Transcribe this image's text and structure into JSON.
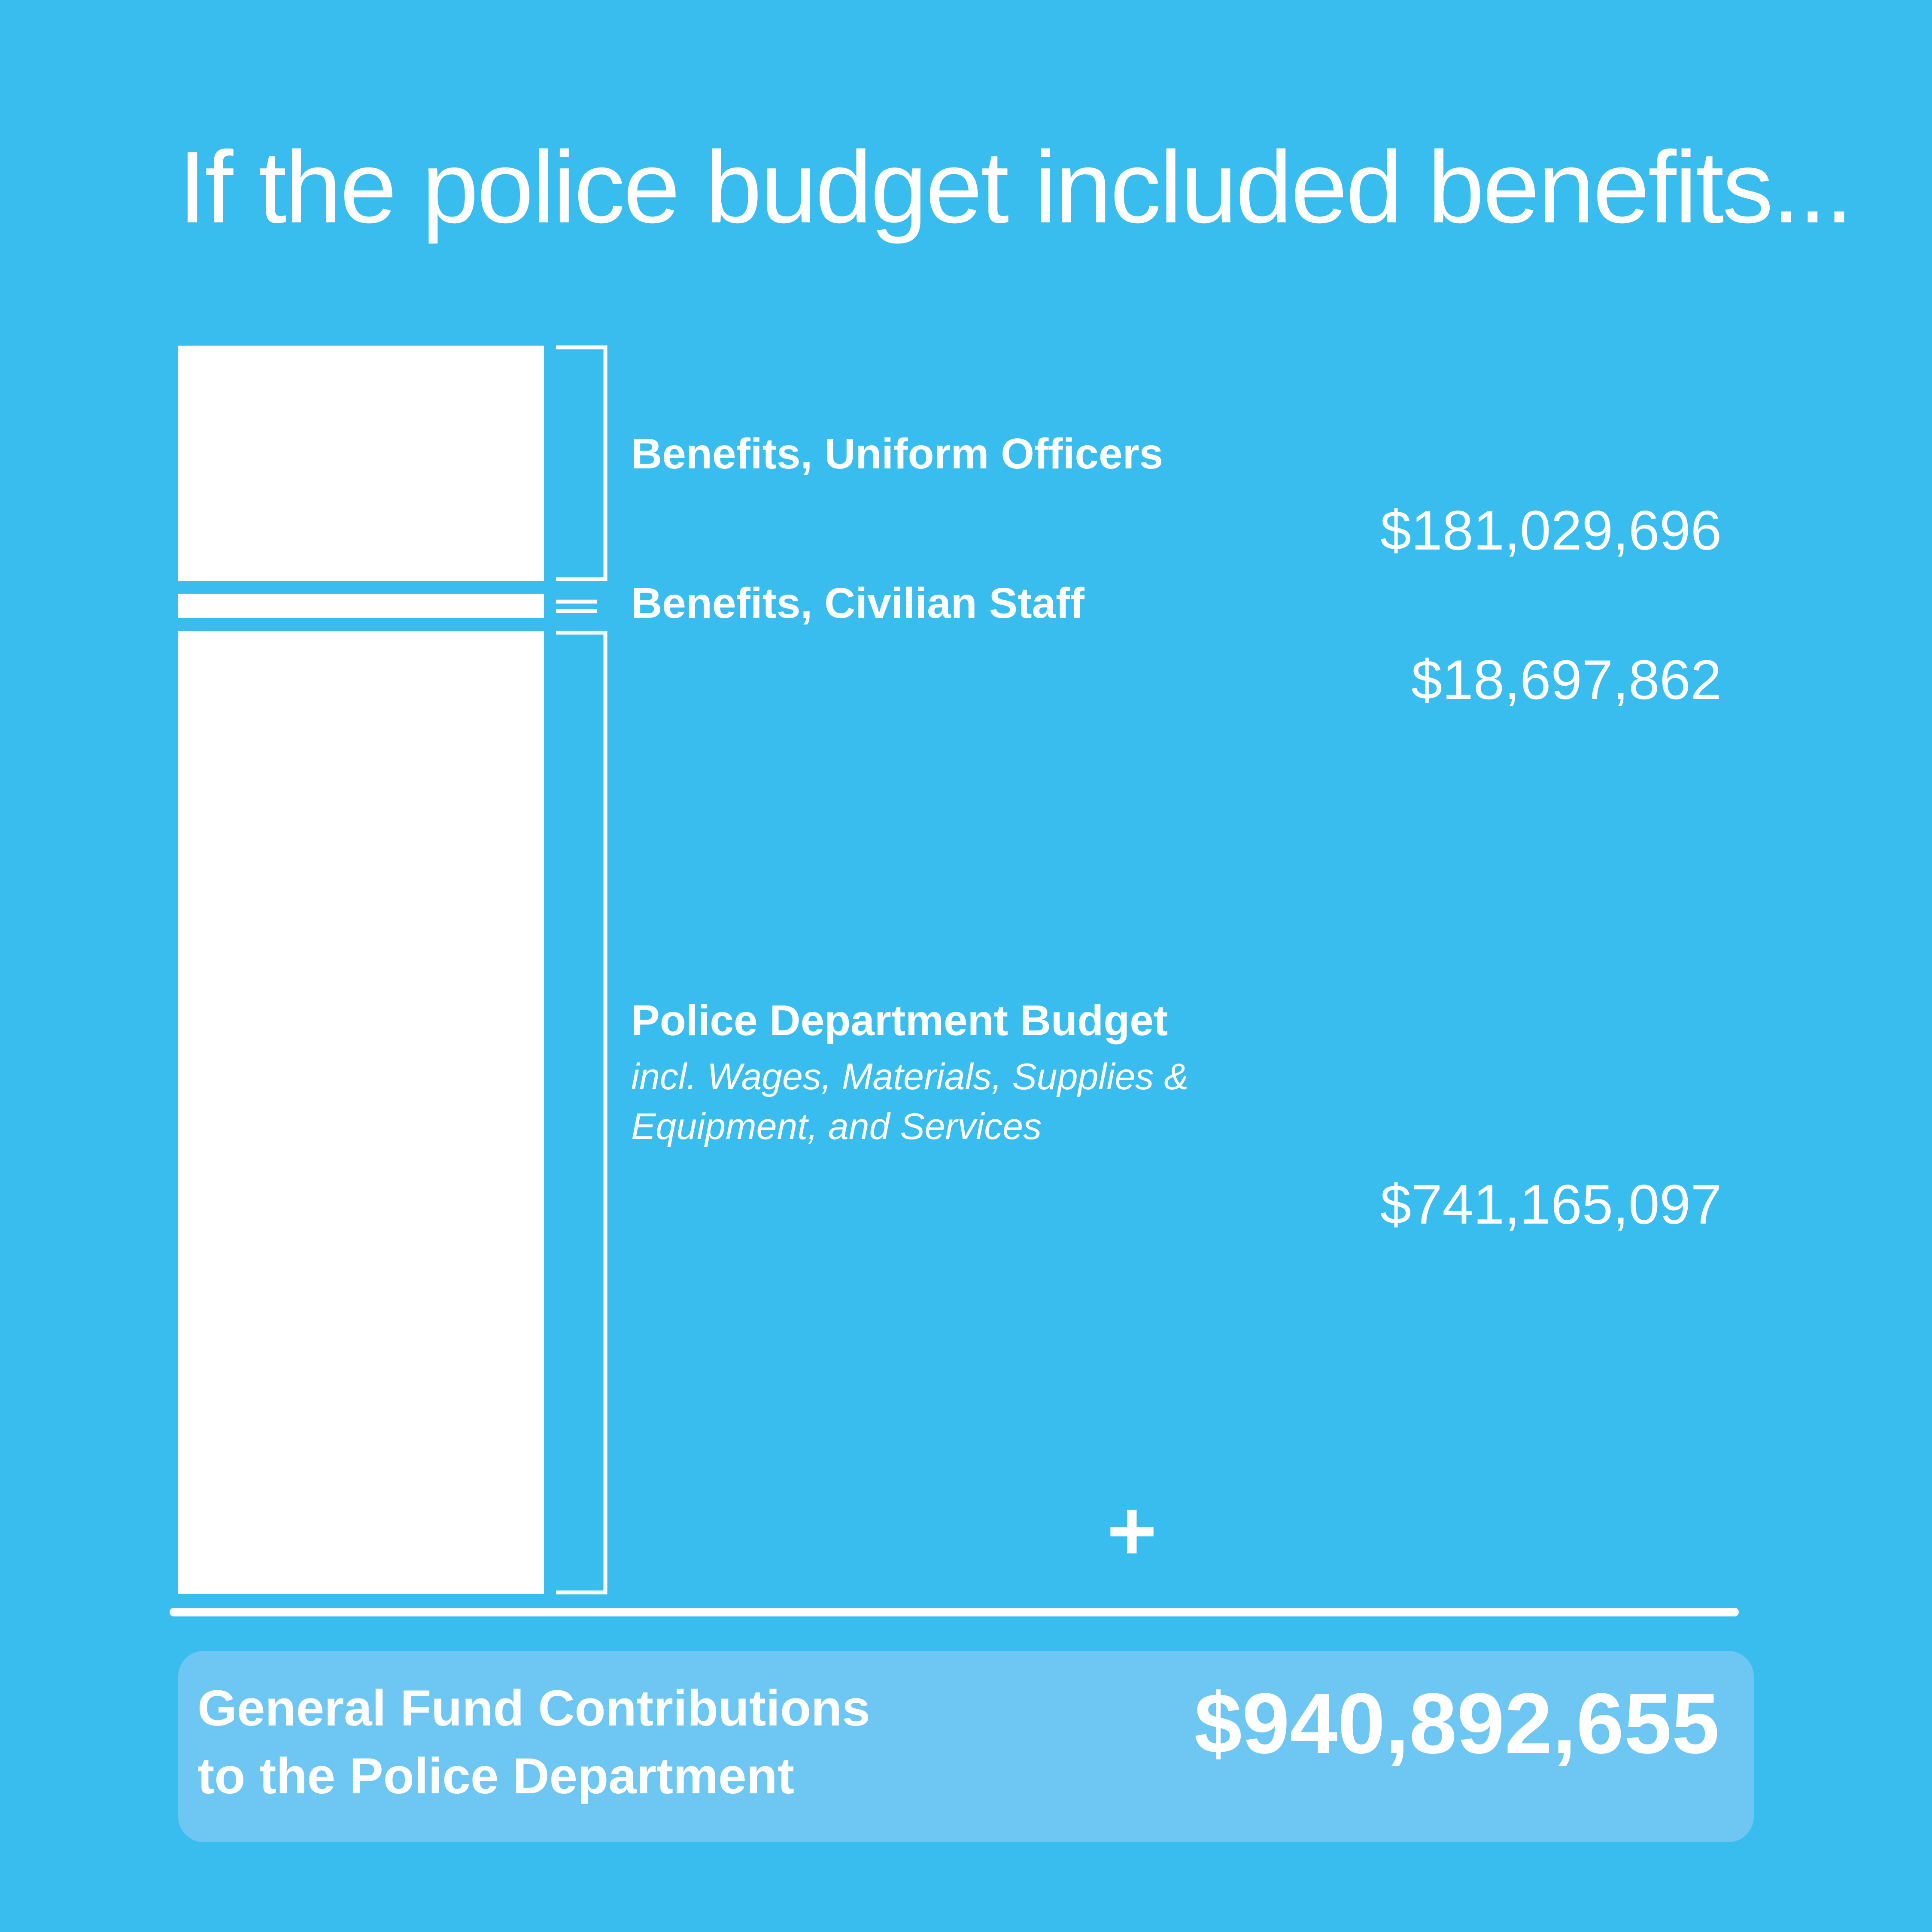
{
  "title": "If the police budget included benefits...",
  "chart_data": {
    "type": "bar",
    "orientation": "stacked-vertical",
    "categories": [
      "Benefits, Uniform Officers",
      "Benefits, Civilian Staff",
      "Police Department Budget"
    ],
    "values": [
      181029696,
      18697862,
      741165097
    ],
    "value_labels": [
      "$181,029,696",
      "$18,697,862",
      "$741,165,097"
    ],
    "subtitle_police": "incl. Wages, Materials, Supplies & Equipment, and Services",
    "total": 940892655,
    "total_label_line1": "General Fund Contributions",
    "total_label_line2": "to the Police Department",
    "total_value_label": "$940,892,655",
    "operator": "+",
    "colors": {
      "background": "#38bdee",
      "bar": "#ffffff",
      "total_box": "#6ec7f2"
    }
  }
}
